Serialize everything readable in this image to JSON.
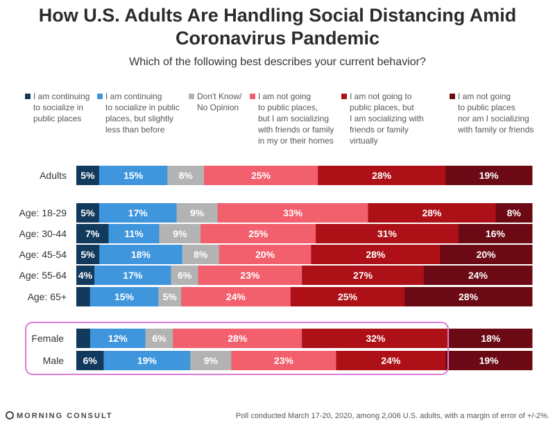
{
  "chart_data": {
    "type": "bar",
    "orientation": "horizontal-stacked-100",
    "title": "How U.S. Adults Are Handling Social Distancing Amid Coronavirus Pandemic",
    "subtitle": "Which of the following best describes your current behavior?",
    "series": [
      {
        "name": "I am continuing to socialize in public places",
        "color": "#123a5c"
      },
      {
        "name": "I am continuing to socialize in public places, but slightly less than before",
        "color": "#3f96dd"
      },
      {
        "name": "Don't Know/ No Opinion",
        "color": "#b3b3b3"
      },
      {
        "name": "I am not going to public places, but I am socializing with friends or family in my or their homes",
        "color": "#f25f6d"
      },
      {
        "name": "I am not going to public places, but I am socializing with friends or family virtually",
        "color": "#ad1117"
      },
      {
        "name": "I am not going to public places nor am I socializing with family or friends",
        "color": "#6b0a14"
      }
    ],
    "categories": [
      "Adults",
      "Age: 18-29",
      "Age: 30-44",
      "Age: 45-54",
      "Age: 55-64",
      "Age: 65+",
      "Female",
      "Male"
    ],
    "values": [
      [
        5,
        15,
        8,
        25,
        28,
        19
      ],
      [
        5,
        17,
        9,
        33,
        28,
        8
      ],
      [
        7,
        11,
        9,
        25,
        31,
        16
      ],
      [
        5,
        18,
        8,
        20,
        28,
        20
      ],
      [
        4,
        17,
        6,
        23,
        27,
        24
      ],
      [
        3,
        15,
        5,
        24,
        25,
        28
      ],
      [
        3,
        12,
        6,
        28,
        32,
        18
      ],
      [
        6,
        19,
        9,
        23,
        24,
        19
      ]
    ],
    "labels": [
      [
        "5%",
        "15%",
        "8%",
        "25%",
        "28%",
        "19%"
      ],
      [
        "5%",
        "17%",
        "9%",
        "33%",
        "28%",
        "8%"
      ],
      [
        "7%",
        "11%",
        "9%",
        "25%",
        "31%",
        "16%"
      ],
      [
        "5%",
        "18%",
        "8%",
        "20%",
        "28%",
        "20%"
      ],
      [
        "4%",
        "17%",
        "6%",
        "23%",
        "27%",
        "24%"
      ],
      [
        "",
        "15%",
        "5%",
        "24%",
        "25%",
        "28%"
      ],
      [
        "",
        "12%",
        "6%",
        "28%",
        "32%",
        "18%"
      ],
      [
        "6%",
        "19%",
        "9%",
        "23%",
        "24%",
        "19%"
      ]
    ],
    "highlight": {
      "rows": [
        "Female",
        "Male"
      ],
      "color": "#d97ad9"
    }
  },
  "legend": [
    "I am continuing\nto socialize in\npublic places",
    "I am continuing\nto socialize in public\nplaces, but slightly\nless than before",
    "Don't Know/\nNo Opinion",
    "I am not going\nto public places,\nbut I am socializing\nwith friends or family\nin my or their homes",
    "I am not going to\npublic places, but\nI am socializing with\nfriends or family virtually",
    "I am not going\nto public places\nnor am I socializing\nwith family or friends"
  ],
  "footer": {
    "brand": "MORNING CONSULT",
    "note": "Poll conducted March 17-20, 2020, among 2,006 U.S. adults, with a margin of error of +/-2%."
  }
}
